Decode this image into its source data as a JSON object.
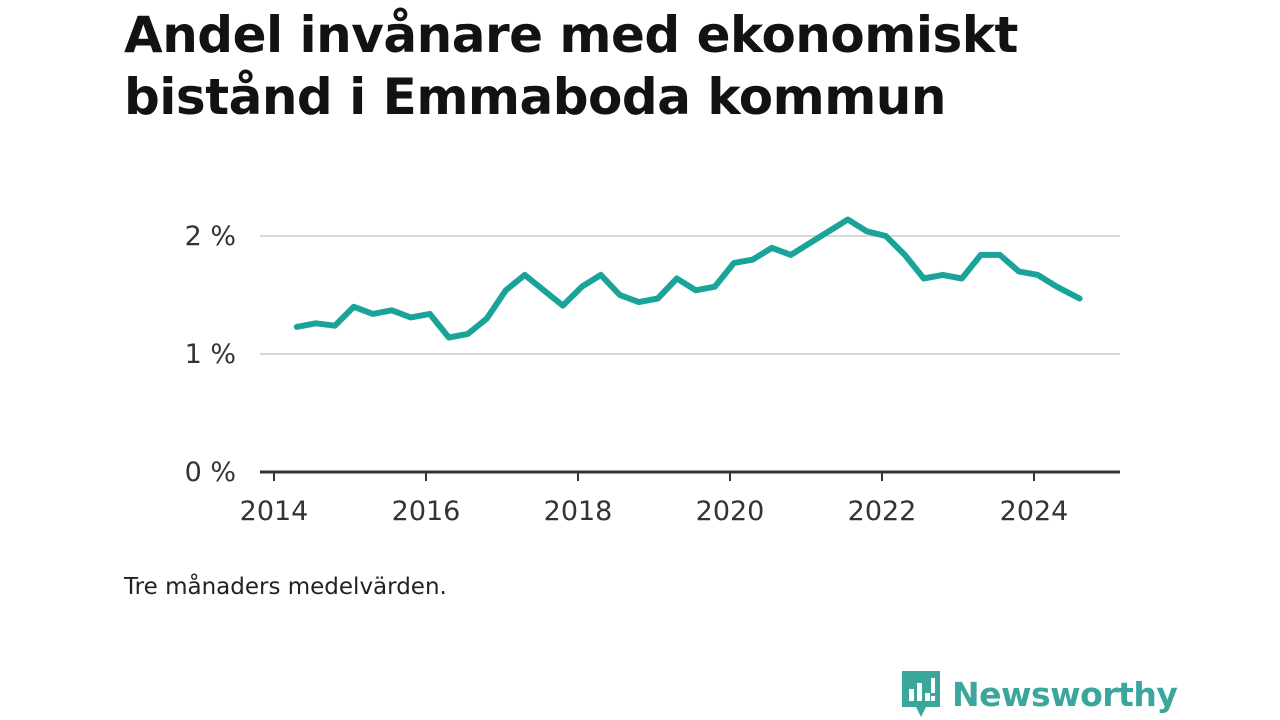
{
  "header": {
    "title_line1": "Andel invånare med ekonomiskt",
    "title_line2": "bistånd i Emmaboda kommun"
  },
  "note": "Tre månaders medelvärden.",
  "brand": {
    "name": "Newsworthy",
    "color": "#3aa69c"
  },
  "chart_data": {
    "type": "line",
    "title": "Andel invånare med ekonomiskt bistånd i Emmaboda kommun",
    "xlabel": "",
    "ylabel": "",
    "xlim": [
      2014.0,
      2025.1
    ],
    "ylim": [
      0,
      2.2
    ],
    "grid": true,
    "x_ticks": [
      2014,
      2016,
      2018,
      2020,
      2022,
      2024
    ],
    "x_tick_labels": [
      "2014",
      "2016",
      "2018",
      "2020",
      "2022",
      "2024"
    ],
    "y_ticks": [
      0,
      1,
      2
    ],
    "y_tick_labels": [
      "0 %",
      "1 %",
      "2 %"
    ],
    "series": [
      {
        "color": "#1aa398",
        "x": [
          2014.3,
          2014.55,
          2014.8,
          2015.05,
          2015.3,
          2015.55,
          2015.8,
          2016.05,
          2016.3,
          2016.55,
          2016.8,
          2017.05,
          2017.3,
          2017.55,
          2017.8,
          2018.05,
          2018.3,
          2018.55,
          2018.8,
          2019.05,
          2019.3,
          2019.55,
          2019.8,
          2020.05,
          2020.3,
          2020.55,
          2020.8,
          2021.05,
          2021.3,
          2021.55,
          2021.8,
          2022.05,
          2022.3,
          2022.55,
          2022.8,
          2023.05,
          2023.3,
          2023.55,
          2023.8,
          2024.05,
          2024.3,
          2024.6
        ],
        "y": [
          1.23,
          1.26,
          1.24,
          1.4,
          1.34,
          1.37,
          1.31,
          1.34,
          1.14,
          1.17,
          1.3,
          1.54,
          1.67,
          1.54,
          1.41,
          1.57,
          1.67,
          1.5,
          1.44,
          1.47,
          1.64,
          1.54,
          1.57,
          1.77,
          1.8,
          1.9,
          1.84,
          1.94,
          2.04,
          2.14,
          2.04,
          2.0,
          1.84,
          1.64,
          1.67,
          1.64,
          1.84,
          1.84,
          1.7,
          1.67,
          1.57,
          1.47
        ]
      }
    ]
  }
}
